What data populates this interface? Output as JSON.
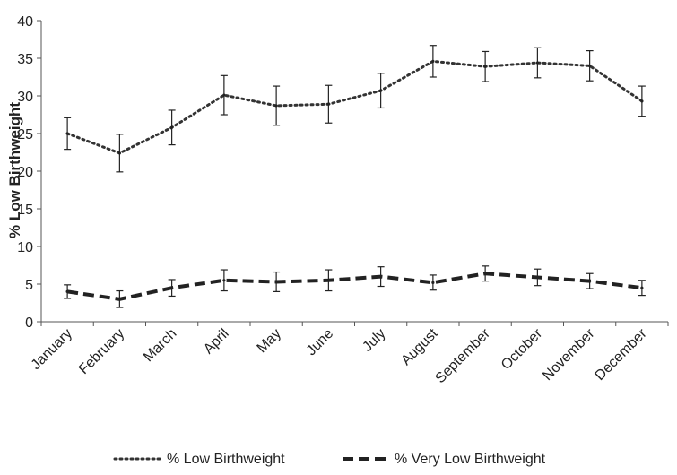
{
  "chart_data": {
    "type": "line",
    "title": "",
    "xlabel": "",
    "ylabel": "% Low Birthweight",
    "categories": [
      "January",
      "February",
      "March",
      "April",
      "May",
      "June",
      "July",
      "August",
      "September",
      "October",
      "November",
      "December"
    ],
    "ylim": [
      0,
      40
    ],
    "yticks": [
      0,
      5,
      10,
      15,
      20,
      25,
      30,
      35,
      40
    ],
    "grid": false,
    "legend_position": "bottom",
    "series": [
      {
        "name": "% Low Birthweight",
        "style": "dotted",
        "color": "#333333",
        "values": [
          25.0,
          22.4,
          25.8,
          30.1,
          28.7,
          28.9,
          30.7,
          34.6,
          33.9,
          34.4,
          34.0,
          29.3
        ],
        "error": [
          2.1,
          2.5,
          2.3,
          2.6,
          2.6,
          2.5,
          2.3,
          2.1,
          2.0,
          2.0,
          2.0,
          2.0
        ]
      },
      {
        "name": "% Very Low Birthweight",
        "style": "dashed",
        "color": "#222222",
        "values": [
          4.0,
          3.0,
          4.5,
          5.5,
          5.3,
          5.5,
          6.0,
          5.2,
          6.4,
          5.9,
          5.4,
          4.5
        ],
        "error": [
          0.9,
          1.1,
          1.1,
          1.4,
          1.3,
          1.4,
          1.3,
          1.0,
          1.0,
          1.1,
          1.0,
          1.0
        ]
      }
    ]
  }
}
